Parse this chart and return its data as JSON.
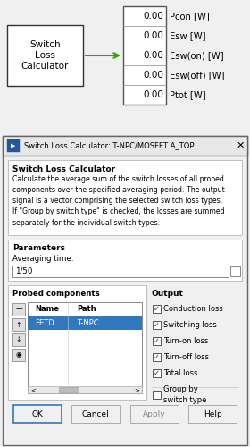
{
  "bg_color": "#f0f0f0",
  "block_label": "Switch\nLoss\nCalculator",
  "output_labels": [
    "Pcon [W]",
    "Esw [W]",
    "Esw(on) [W]",
    "Esw(off) [W]",
    "Ptot [W]"
  ],
  "output_values": [
    "0.00",
    "0.00",
    "0.00",
    "0.00",
    "0.00"
  ],
  "dialog_title": "Switch Loss Calculator: T-NPC/MOSFET A_TOP",
  "section1_title": "Switch Loss Calculator",
  "section1_text": "Calculate the average sum of the switch losses of all probed\ncomponents over the specified averaging period. The output\nsignal is a vector comprising the selected switch loss types.\nIf \"Group by switch type\" is checked, the losses are summed\nseparately for the individual switch types.",
  "params_title": "Parameters",
  "avg_label": "Averaging time:",
  "avg_value": "1/50",
  "probed_title": "Probed components",
  "table_headers": [
    "Name",
    "Path"
  ],
  "table_row": [
    "FETD",
    "T-NPC"
  ],
  "output_title": "Output",
  "checkboxes": [
    "Conduction loss",
    "Switching loss",
    "Turn-on loss",
    "Turn-off loss",
    "Total loss"
  ],
  "checkbox_checked": [
    true,
    true,
    true,
    true,
    true
  ],
  "group_checkbox": "Group by\nswitch type",
  "group_checked": false,
  "buttons": [
    "OK",
    "Cancel",
    "Apply",
    "Help"
  ],
  "arrow_color": "#2aaa00",
  "selected_row_color": "#3278be",
  "selected_row_text": "#ffffff",
  "border_color": "#aaaaaa",
  "dark_border": "#666666",
  "titlebar_bg": "#f0f0f0",
  "section_bg": "#ffffff",
  "dialog_bg": "#f0f0f0"
}
